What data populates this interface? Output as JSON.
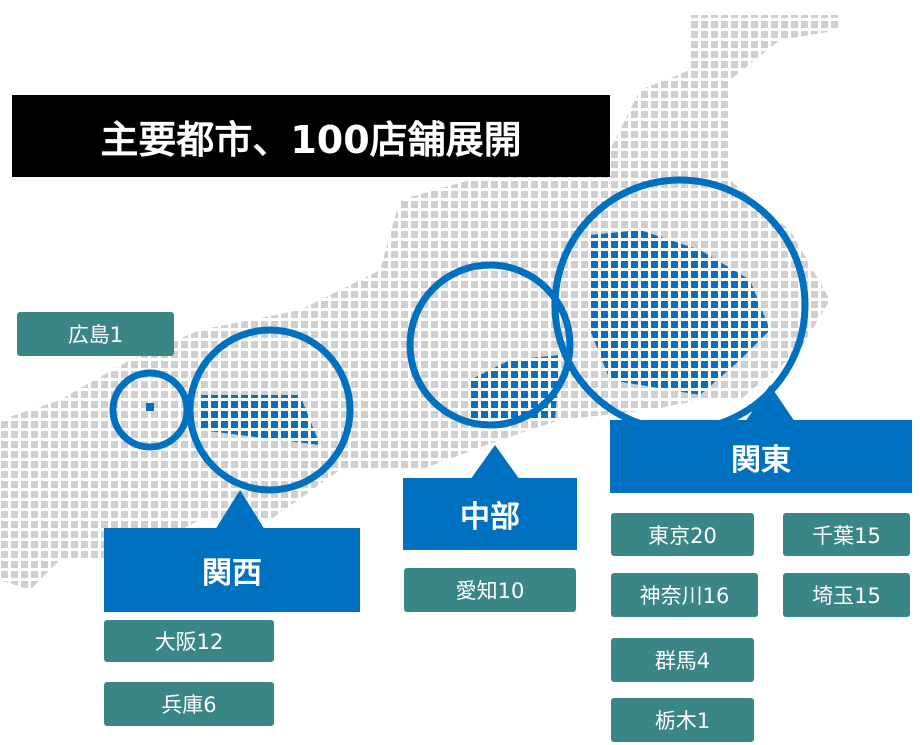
{
  "title": "主要都市、100店舗展開",
  "areas": [
    {
      "name": "関西",
      "stores": [
        "大阪12",
        "兵庫6"
      ]
    },
    {
      "name": "中部",
      "stores": [
        "愛知10"
      ]
    },
    {
      "name": "関東",
      "stores": [
        "東京20",
        "神奈川16",
        "群馬4",
        "栃木1",
        "千葉15",
        "埼玉15"
      ]
    }
  ],
  "other_stores": [
    "広島1"
  ]
}
